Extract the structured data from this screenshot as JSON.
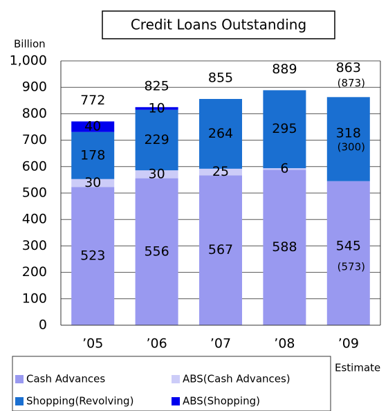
{
  "chart_data": {
    "type": "bar",
    "stacked": true,
    "title": "Credit Loans Outstanding",
    "y_label": "Billion",
    "categories": [
      "’05",
      "’06",
      "’07",
      "’08",
      "’09"
    ],
    "series": [
      {
        "name": "Cash Advances",
        "color": "#9999f0",
        "values": [
          523,
          556,
          567,
          588,
          545
        ]
      },
      {
        "name": "ABS(Cash Advances)",
        "color": "#ccccf8",
        "values": [
          30,
          30,
          25,
          6,
          null
        ]
      },
      {
        "name": "Shopping(Revolving)",
        "color": "#1a6fd1",
        "values": [
          178,
          229,
          264,
          295,
          318
        ]
      },
      {
        "name": "ABS(Shopping)",
        "color": "#0000ee",
        "values": [
          40,
          10,
          null,
          null,
          null
        ]
      }
    ],
    "totals": [
      772,
      825,
      855,
      889,
      863
    ],
    "annotations": [
      "(873)",
      "(300)",
      "(573)"
    ],
    "note": "Estimate",
    "ylim": [
      0,
      1000
    ],
    "yticks": [
      0,
      100,
      200,
      300,
      400,
      500,
      600,
      700,
      800,
      900,
      {
        "value": 1000,
        "label": "1,000"
      }
    ],
    "grid": true
  }
}
